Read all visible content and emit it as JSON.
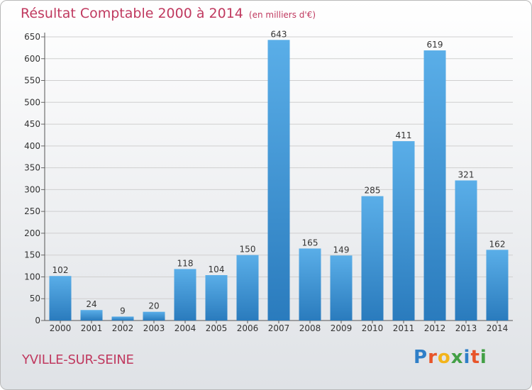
{
  "header": {
    "title": "Résultat Comptable 2000 à 2014",
    "subtitle": "(en milliers d'€)"
  },
  "footer": {
    "town": "YVILLE-SUR-SEINE",
    "logo_letters": [
      "P",
      "r",
      "o",
      "x",
      "i",
      "t",
      "i"
    ],
    "logo_colors": [
      "#2f7fc8",
      "#e8552a",
      "#f3b41b",
      "#43a046",
      "#2f7fc8",
      "#e8552a",
      "#43a046"
    ]
  },
  "colors": {
    "bar_top": "#5aaee8",
    "bar_bottom": "#2a7bbd",
    "title": "#c0395f",
    "grid": "#cfcfcf"
  },
  "chart_data": {
    "type": "bar",
    "categories": [
      "2000",
      "2001",
      "2002",
      "2003",
      "2004",
      "2005",
      "2006",
      "2007",
      "2008",
      "2009",
      "2010",
      "2011",
      "2012",
      "2013",
      "2014"
    ],
    "values": [
      102,
      24,
      9,
      20,
      118,
      104,
      150,
      643,
      165,
      149,
      285,
      411,
      619,
      321,
      162
    ],
    "ylim": [
      0,
      650
    ],
    "yticks": [
      0,
      50,
      100,
      150,
      200,
      250,
      300,
      350,
      400,
      450,
      500,
      550,
      600,
      650
    ],
    "grid": true,
    "title": "Résultat Comptable 2000 à 2014",
    "xlabel": "",
    "ylabel": ""
  }
}
